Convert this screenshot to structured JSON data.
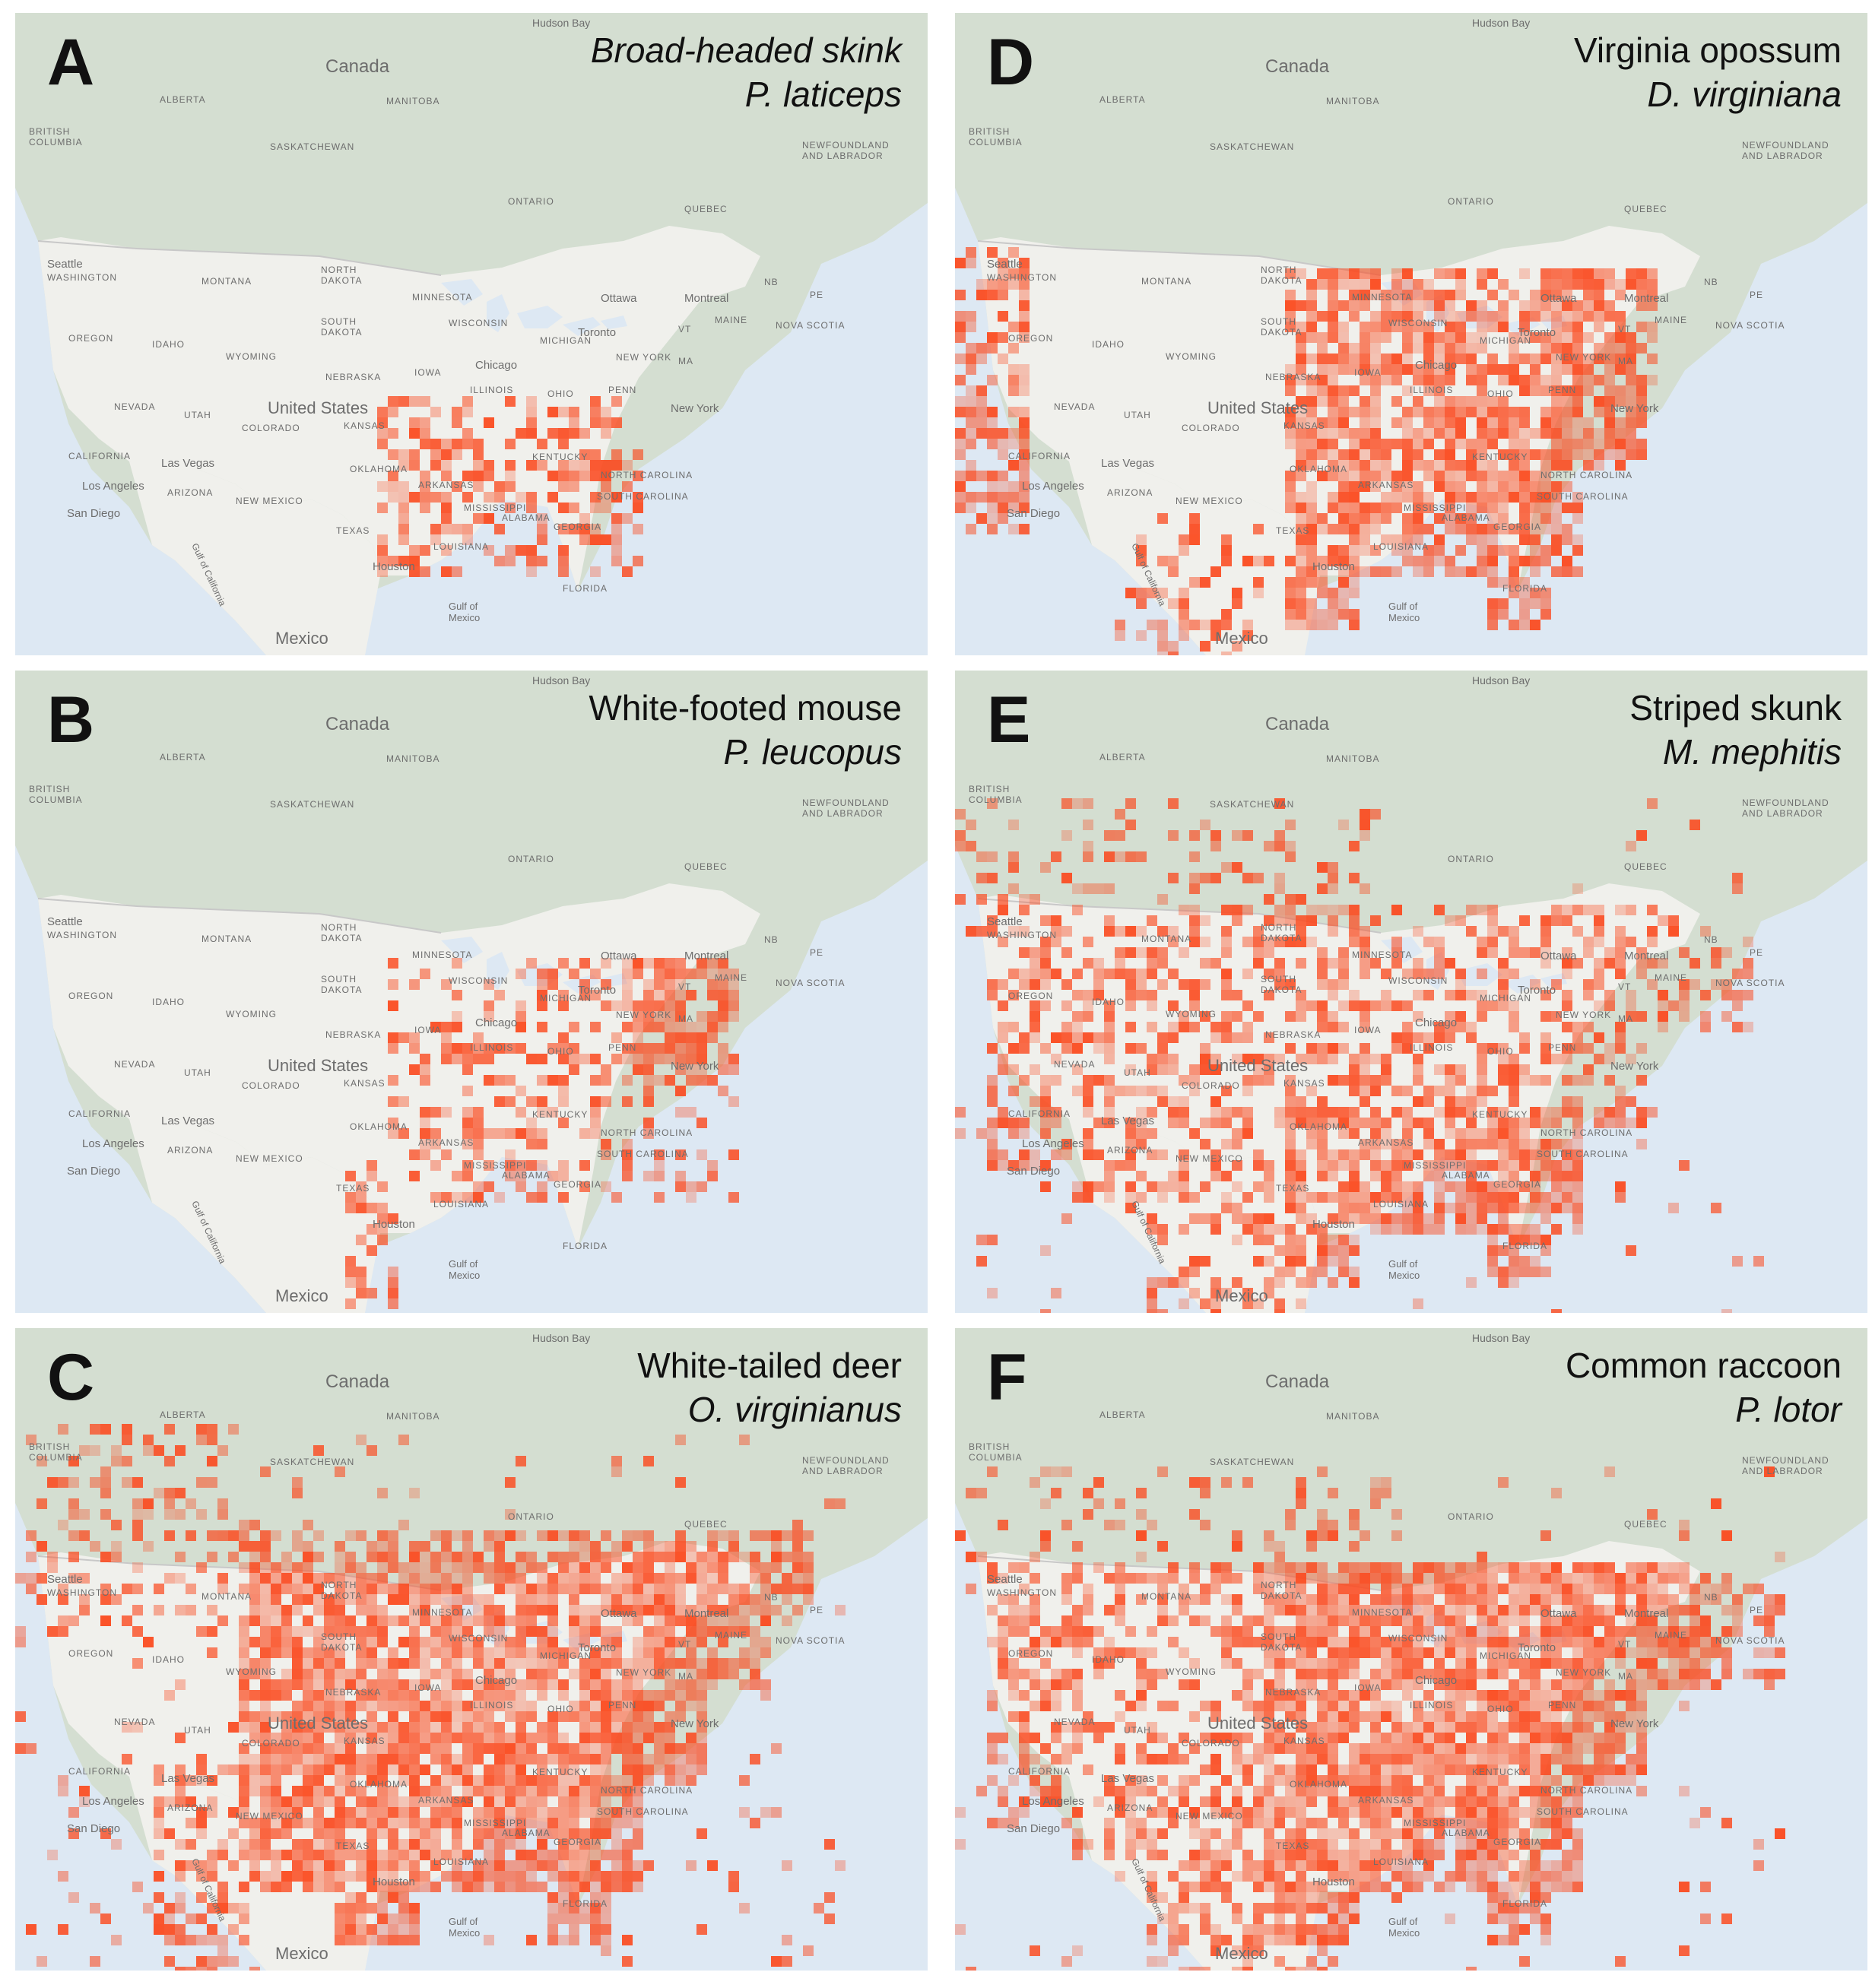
{
  "colors": {
    "ocean": "#dde8f3",
    "forest": "#d4ded1",
    "land": "#f0f0ec",
    "boundary": "#c8c8c8",
    "label": "#6d6d6d",
    "heat": "#fb4a1f"
  },
  "map_labels": {
    "canada": "Canada",
    "united_states": "United States",
    "mexico": "Mexico",
    "hudson_bay": "Hudson Bay",
    "gulf_mexico_1": "Gulf of",
    "gulf_mexico_2": "Mexico",
    "gulf_california": "Gulf of California",
    "alberta": "ALBERTA",
    "manitoba": "MANITOBA",
    "british_columbia_1": "BRITISH",
    "british_columbia_2": "COLUMBIA",
    "saskatchewan": "SASKATCHEWAN",
    "ontario": "ONTARIO",
    "quebec": "QUEBEC",
    "newfoundland_1": "NEWFOUNDLAND",
    "newfoundland_2": "AND LABRADOR",
    "nb": "NB",
    "pe": "PE",
    "nova_scotia": "NOVA SCOTIA",
    "seattle": "Seattle",
    "washington": "WASHINGTON",
    "montana": "MONTANA",
    "north_dakota_1": "NORTH",
    "north_dakota_2": "DAKOTA",
    "minnesota": "MINNESOTA",
    "ottawa": "Ottawa",
    "montreal": "Montreal",
    "oregon": "OREGON",
    "idaho": "IDAHO",
    "south_dakota_1": "SOUTH",
    "south_dakota_2": "DAKOTA",
    "wisconsin": "WISCONSIN",
    "michigan": "MICHIGAN",
    "toronto": "Toronto",
    "vt": "VT",
    "maine": "MAINE",
    "wyoming": "WYOMING",
    "new_york_state": "NEW YORK",
    "chicago": "Chicago",
    "nebraska": "NEBRASKA",
    "iowa": "IOWA",
    "ma": "MA",
    "nevada": "NEVADA",
    "utah": "UTAH",
    "colorado": "COLORADO",
    "kansas": "KANSAS",
    "illinois": "ILLINOIS",
    "ohio": "OHIO",
    "penn": "PENN",
    "new_york_city": "New York",
    "california": "CALIFORNIA",
    "las_vegas": "Las Vegas",
    "los_angeles": "Los Angeles",
    "arizona": "ARIZONA",
    "new_mexico": "NEW MEXICO",
    "oklahoma": "OKLAHOMA",
    "arkansas": "ARKANSAS",
    "mississippi": "MISSISSIPPI",
    "alabama": "ALABAMA",
    "georgia": "GEORGIA",
    "kentucky": "KENTUCKY",
    "north_carolina": "NORTH CAROLINA",
    "south_carolina": "SOUTH CAROLINA",
    "san_diego": "San Diego",
    "texas": "TEXAS",
    "louisiana": "LOUISIANA",
    "houston": "Houston",
    "florida": "FLORIDA"
  },
  "panels": [
    {
      "letter": "A",
      "common": "Broad-headed skink",
      "scientific": "P. laticeps",
      "common_italic": true,
      "density": "southeast"
    },
    {
      "letter": "B",
      "common": "White-footed mouse",
      "scientific": "P. leucopus",
      "common_italic": false,
      "density": "east"
    },
    {
      "letter": "C",
      "common": "White-tailed deer",
      "scientific": "O. virginianus",
      "common_italic": false,
      "density": "continental"
    },
    {
      "letter": "D",
      "common": "Virginia opossum",
      "scientific": "D. virginiana",
      "common_italic": false,
      "density": "east_and_pacific"
    },
    {
      "letter": "E",
      "common": "Striped skunk",
      "scientific": "M. mephitis",
      "common_italic": false,
      "density": "widespread"
    },
    {
      "letter": "F",
      "common": "Common raccoon",
      "scientific": "P. lotor",
      "common_italic": false,
      "density": "widespread_dense"
    }
  ]
}
